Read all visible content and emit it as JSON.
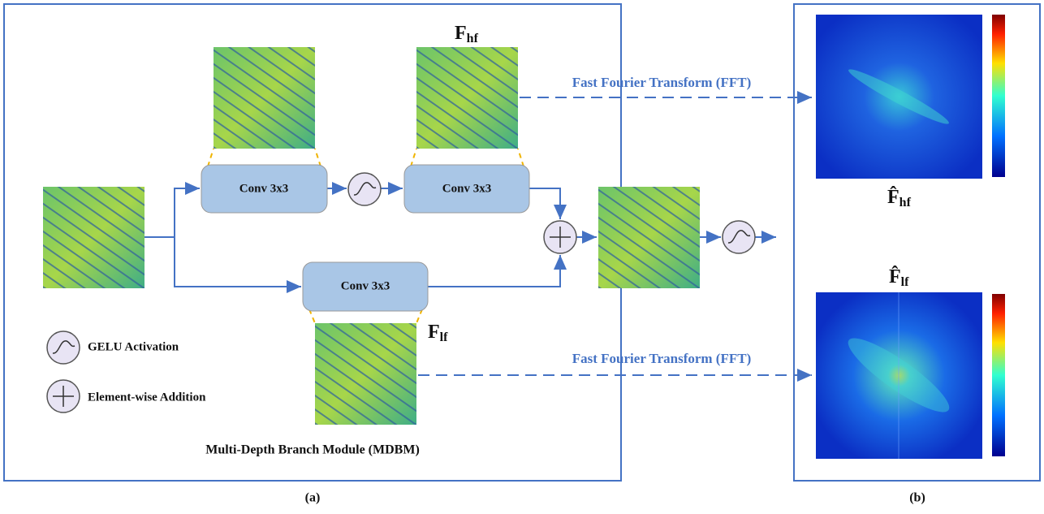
{
  "panel_a": {
    "caption": "(a)",
    "title": "Multi-Depth Branch Module (MDBM)",
    "conv_top_1": "Conv 3x3",
    "conv_top_2": "Conv 3x3",
    "conv_bottom": "Conv 3x3",
    "f_hf": {
      "base": "F",
      "sub": "hf"
    },
    "f_lf": {
      "base": "F",
      "sub": "lf"
    },
    "fft_top": "Fast Fourier Transform (FFT)",
    "fft_bottom": "Fast Fourier Transform (FFT)",
    "legend": {
      "gelu": "GELU Activation",
      "add": "Element-wise Addition"
    }
  },
  "panel_b": {
    "caption": "(b)",
    "f_hat_hf": {
      "base": "F̂",
      "sub": "hf"
    },
    "f_hat_lf": {
      "base": "F̂",
      "sub": "lf"
    }
  }
}
